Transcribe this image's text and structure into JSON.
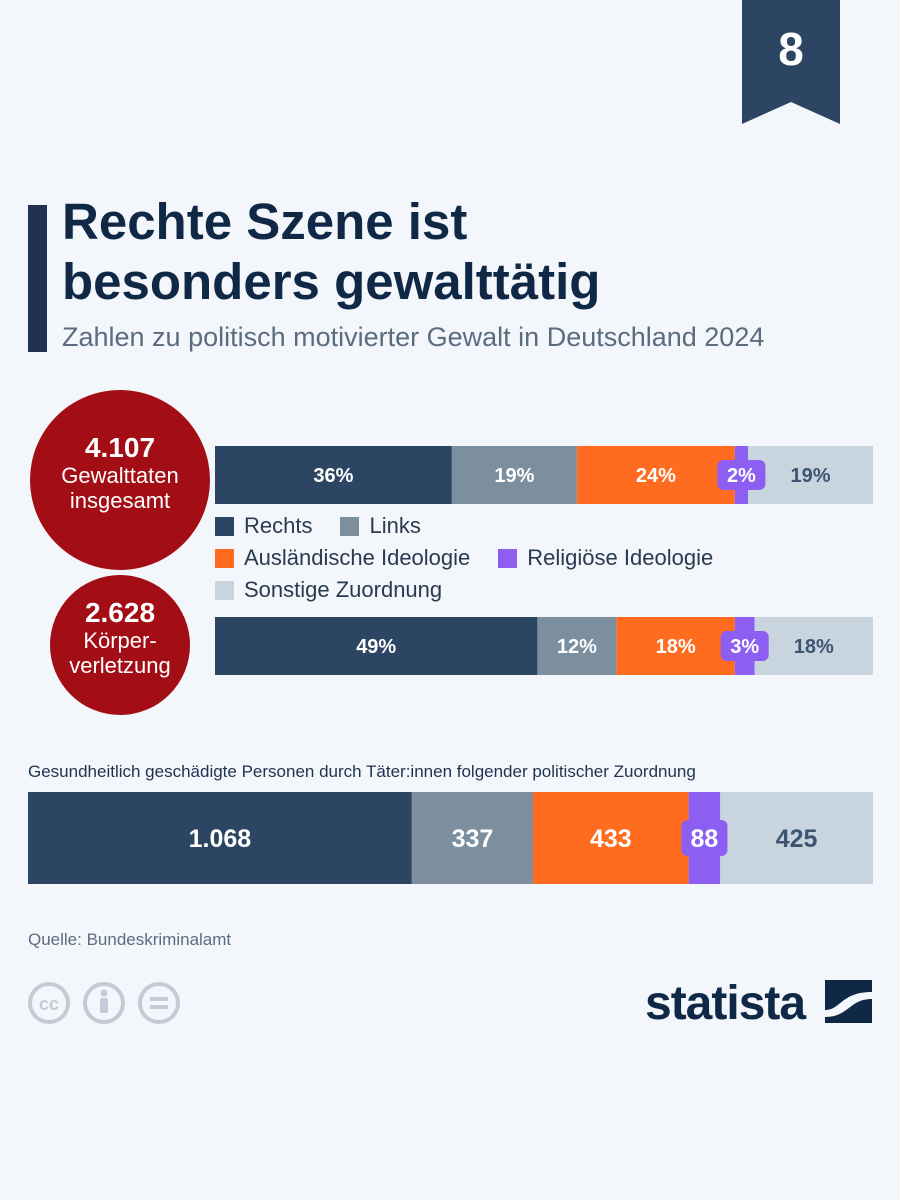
{
  "page_number": "8",
  "title_line1": "Rechte Szene ist",
  "title_line2": "besonders gewalttätig",
  "subtitle": "Zahlen zu politisch motivierter Gewalt in Deutschland 2024",
  "stat1": {
    "value": "4.107",
    "label": "Gewalttaten\ninsgesamt"
  },
  "stat2": {
    "value": "2.628",
    "label": "Körper-\nverletzung"
  },
  "legend": {
    "rechts": "Rechts",
    "links": "Links",
    "auslaendisch": "Ausländische Ideologie",
    "religioes": "Religiöse Ideologie",
    "sonstige": "Sonstige Zuordnung"
  },
  "colors": {
    "Rechts": "#2c4562",
    "Links": "#7b8f9f",
    "Ausländische Ideologie": "#ff6b1f",
    "Religiöse Ideologie": "#8d5ef2",
    "Sonstige Zuordnung": "#c8d5de",
    "circle": "#a30d15"
  },
  "bottom_caption": "Gesundheitlich geschädigte Personen durch Täter:innen folgender politischer Zuordnung",
  "source": "Quelle: Bundeskriminalamt",
  "logo_text": "statista",
  "chart_data": [
    {
      "type": "bar",
      "stacked": true,
      "orientation": "horizontal",
      "categories": [
        "Rechts",
        "Links",
        "Ausländische Ideologie",
        "Religiöse Ideologie",
        "Sonstige Zuordnung"
      ],
      "values": [
        36,
        19,
        24,
        2,
        19
      ],
      "labels": [
        "36%",
        "19%",
        "24%",
        "2%",
        "19%"
      ],
      "unit": "%"
    },
    {
      "type": "bar",
      "stacked": true,
      "orientation": "horizontal",
      "categories": [
        "Rechts",
        "Links",
        "Ausländische Ideologie",
        "Religiöse Ideologie",
        "Sonstige Zuordnung"
      ],
      "values": [
        49,
        12,
        18,
        3,
        18
      ],
      "labels": [
        "49%",
        "12%",
        "18%",
        "3%",
        "18%"
      ],
      "unit": "%"
    },
    {
      "type": "bar",
      "stacked": true,
      "orientation": "horizontal",
      "categories": [
        "Rechts",
        "Links",
        "Ausländische Ideologie",
        "Religiöse Ideologie",
        "Sonstige Zuordnung"
      ],
      "values": [
        1068,
        337,
        433,
        88,
        425
      ],
      "labels": [
        "1.068",
        "337",
        "433",
        "88",
        "425"
      ]
    }
  ]
}
